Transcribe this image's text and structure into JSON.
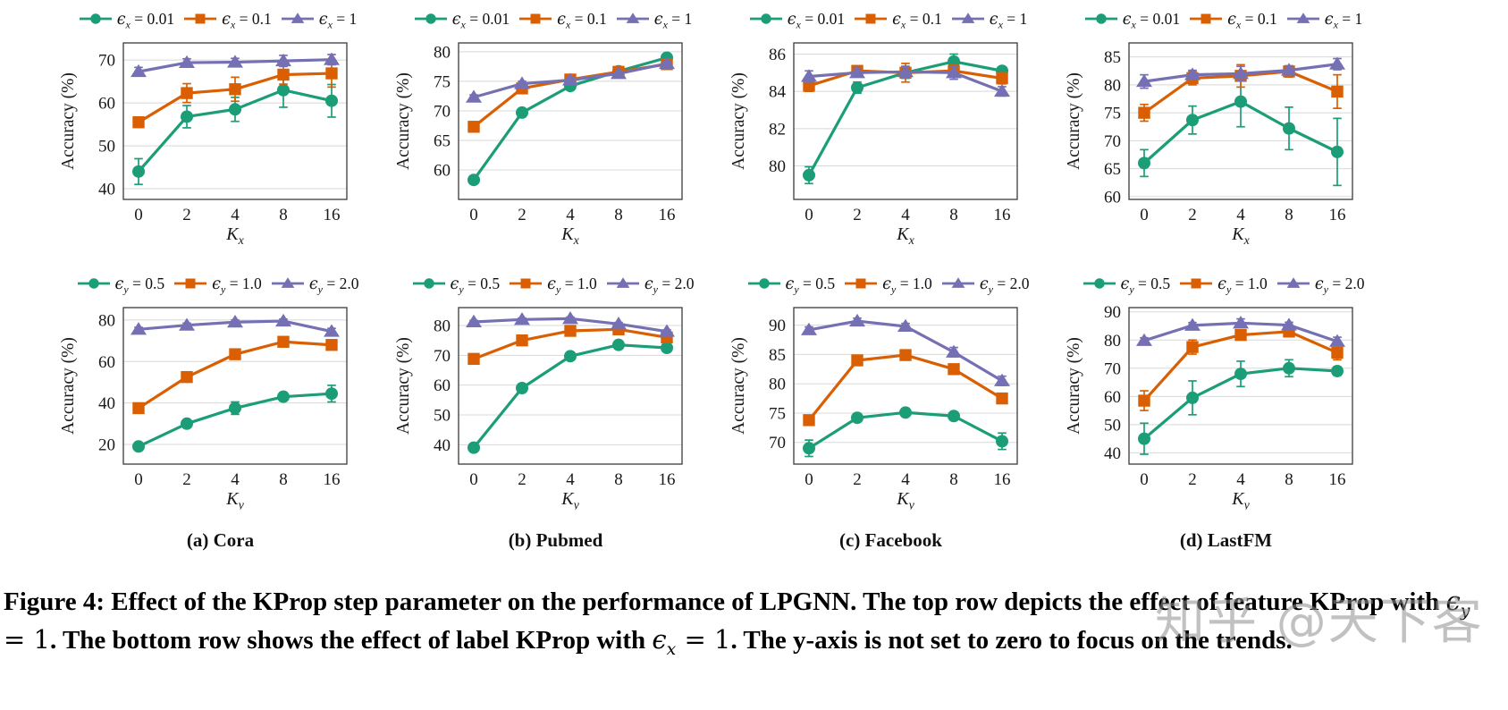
{
  "figure_caption": {
    "part1": "Figure 4: Effect of the KProp step parameter on the performance of LPGNN. The top row depicts the effect of feature KProp with ",
    "math1_base": "ϵ",
    "math1_sub": "y",
    "math1_rest": " = 1",
    "part2": ". The bottom row shows the effect of label KProp with ",
    "math2_base": "ϵ",
    "math2_sub": "x",
    "math2_rest": " = 1",
    "part3": ". The y-axis is not set to zero to focus on the trends."
  },
  "subcaptions": [
    "(a) Cora",
    "(b) Pubmed",
    "(c) Facebook",
    "(d) LastFM"
  ],
  "watermark": {
    "text": "知乎 @天下客"
  },
  "colors": {
    "series": {
      "green": "#1b9e77",
      "orange": "#d95f02",
      "purple": "#7570b3"
    },
    "grid": "#d8d8d8",
    "frame": "#3a3a3a",
    "text": "#1a1a1a"
  },
  "chart_data": [
    {
      "id": "cora-feature",
      "dataset": "Cora",
      "row": "top",
      "type": "line",
      "x_label": {
        "base": "K",
        "sub": "x"
      },
      "y_label": "Accuracy (%)",
      "categories": [
        0,
        2,
        4,
        8,
        16
      ],
      "yticks": [
        40,
        50,
        60,
        70
      ],
      "ylim": [
        37.5,
        74
      ],
      "grid": "horizontal",
      "legend_position": "top",
      "series": [
        {
          "name": {
            "base": "ϵ",
            "sub": "x",
            "rest": " = 0.01"
          },
          "color": "green",
          "marker": "circle",
          "values": [
            44,
            56.8,
            58.5,
            63,
            60.5
          ],
          "errors": [
            3,
            2.6,
            2.8,
            4,
            3.8
          ]
        },
        {
          "name": {
            "base": "ϵ",
            "sub": "x",
            "rest": " = 0.1"
          },
          "color": "orange",
          "marker": "square",
          "values": [
            55.5,
            62.3,
            63.2,
            66.6,
            66.9
          ],
          "errors": [
            1.2,
            2.2,
            2.8,
            2.2,
            3.2
          ]
        },
        {
          "name": {
            "base": "ϵ",
            "sub": "x",
            "rest": " = 1"
          },
          "color": "purple",
          "marker": "triangle",
          "values": [
            67.3,
            69.4,
            69.5,
            69.8,
            70.1
          ],
          "errors": [
            1.0,
            0.9,
            0.9,
            1.3,
            1.2
          ]
        }
      ]
    },
    {
      "id": "pubmed-feature",
      "dataset": "Pubmed",
      "row": "top",
      "type": "line",
      "x_label": {
        "base": "K",
        "sub": "x"
      },
      "y_label": "Accuracy (%)",
      "categories": [
        0,
        2,
        4,
        8,
        16
      ],
      "yticks": [
        60,
        65,
        70,
        75,
        80
      ],
      "ylim": [
        55,
        81.5
      ],
      "grid": "horizontal",
      "legend_position": "top",
      "series": [
        {
          "name": {
            "base": "ϵ",
            "sub": "x",
            "rest": " = 0.01"
          },
          "color": "green",
          "marker": "circle",
          "values": [
            58.3,
            69.7,
            74.2,
            76.7,
            79.0
          ],
          "errors": [
            0.5,
            0.4,
            0.4,
            0.4,
            0.4
          ]
        },
        {
          "name": {
            "base": "ϵ",
            "sub": "x",
            "rest": " = 0.1"
          },
          "color": "orange",
          "marker": "square",
          "values": [
            67.3,
            73.8,
            75.3,
            76.6,
            77.9
          ],
          "errors": [
            0.5,
            0.4,
            0.4,
            0.4,
            0.4
          ]
        },
        {
          "name": {
            "base": "ϵ",
            "sub": "x",
            "rest": " = 1"
          },
          "color": "purple",
          "marker": "triangle",
          "values": [
            72.3,
            74.6,
            75.2,
            76.3,
            78.0
          ],
          "errors": [
            0.4,
            0.4,
            0.4,
            0.4,
            0.4
          ]
        }
      ]
    },
    {
      "id": "facebook-feature",
      "dataset": "Facebook",
      "row": "top",
      "type": "line",
      "x_label": {
        "base": "K",
        "sub": "x"
      },
      "y_label": "Accuracy (%)",
      "categories": [
        0,
        2,
        4,
        8,
        16
      ],
      "yticks": [
        80,
        82,
        84,
        86
      ],
      "ylim": [
        78.2,
        86.6
      ],
      "grid": "horizontal",
      "legend_position": "top",
      "series": [
        {
          "name": {
            "base": "ϵ",
            "sub": "x",
            "rest": " = 0.01"
          },
          "color": "green",
          "marker": "circle",
          "values": [
            79.5,
            84.2,
            85.0,
            85.6,
            85.1
          ],
          "errors": [
            0.45,
            0.3,
            0.3,
            0.4,
            0.2
          ]
        },
        {
          "name": {
            "base": "ϵ",
            "sub": "x",
            "rest": " = 0.1"
          },
          "color": "orange",
          "marker": "square",
          "values": [
            84.3,
            85.1,
            85.0,
            85.1,
            84.7
          ],
          "errors": [
            0.3,
            0.25,
            0.5,
            0.3,
            0.3
          ]
        },
        {
          "name": {
            "base": "ϵ",
            "sub": "x",
            "rest": " = 1"
          },
          "color": "purple",
          "marker": "triangle",
          "values": [
            84.8,
            85.0,
            85.05,
            85.0,
            84.0
          ],
          "errors": [
            0.3,
            0.2,
            0.3,
            0.35,
            0.25
          ]
        }
      ]
    },
    {
      "id": "lastfm-feature",
      "dataset": "LastFM",
      "row": "top",
      "type": "line",
      "x_label": {
        "base": "K",
        "sub": "x"
      },
      "y_label": "Accuracy (%)",
      "categories": [
        0,
        2,
        4,
        8,
        16
      ],
      "yticks": [
        60,
        65,
        70,
        75,
        80,
        85
      ],
      "ylim": [
        59.5,
        87.5
      ],
      "grid": "horizontal",
      "legend_position": "top",
      "series": [
        {
          "name": {
            "base": "ϵ",
            "sub": "x",
            "rest": " = 0.01"
          },
          "color": "green",
          "marker": "circle",
          "values": [
            66.0,
            73.7,
            77.0,
            72.2,
            68.0
          ],
          "errors": [
            2.4,
            2.5,
            4.5,
            3.8,
            6.0
          ]
        },
        {
          "name": {
            "base": "ϵ",
            "sub": "x",
            "rest": " = 0.1"
          },
          "color": "orange",
          "marker": "square",
          "values": [
            75.0,
            81.2,
            81.6,
            82.4,
            78.8
          ],
          "errors": [
            1.5,
            1.2,
            2.0,
            1.0,
            3.0
          ]
        },
        {
          "name": {
            "base": "ϵ",
            "sub": "x",
            "rest": " = 1"
          },
          "color": "purple",
          "marker": "triangle",
          "values": [
            80.6,
            81.8,
            82.0,
            82.6,
            83.7
          ],
          "errors": [
            1.2,
            0.8,
            1.3,
            0.8,
            1.0
          ]
        }
      ]
    },
    {
      "id": "cora-label",
      "dataset": "Cora",
      "row": "bottom",
      "type": "line",
      "x_label": {
        "base": "K",
        "sub": "y"
      },
      "y_label": "Accuracy (%)",
      "categories": [
        0,
        2,
        4,
        8,
        16
      ],
      "yticks": [
        20,
        40,
        60,
        80
      ],
      "ylim": [
        10.5,
        86
      ],
      "grid": "horizontal",
      "legend_position": "top",
      "series": [
        {
          "name": {
            "base": "ϵ",
            "sub": "y",
            "rest": " = 0.5"
          },
          "color": "green",
          "marker": "circle",
          "values": [
            19,
            30,
            37.5,
            43,
            44.5
          ],
          "errors": [
            1.5,
            1.5,
            3,
            2,
            4
          ]
        },
        {
          "name": {
            "base": "ϵ",
            "sub": "y",
            "rest": " = 1.0"
          },
          "color": "orange",
          "marker": "square",
          "values": [
            37.5,
            52.5,
            63.5,
            69.5,
            68
          ],
          "errors": [
            2,
            1.5,
            1.5,
            1.5,
            2
          ]
        },
        {
          "name": {
            "base": "ϵ",
            "sub": "y",
            "rest": " = 2.0"
          },
          "color": "purple",
          "marker": "triangle",
          "values": [
            75.5,
            77.5,
            79,
            79.5,
            74.5
          ],
          "errors": [
            1,
            1,
            1,
            1,
            1.5
          ]
        }
      ]
    },
    {
      "id": "pubmed-label",
      "dataset": "Pubmed",
      "row": "bottom",
      "type": "line",
      "x_label": {
        "base": "K",
        "sub": "y"
      },
      "y_label": "Accuracy (%)",
      "categories": [
        0,
        2,
        4,
        8,
        16
      ],
      "yticks": [
        40,
        50,
        60,
        70,
        80
      ],
      "ylim": [
        33.5,
        86
      ],
      "grid": "horizontal",
      "legend_position": "top",
      "series": [
        {
          "name": {
            "base": "ϵ",
            "sub": "y",
            "rest": " = 0.5"
          },
          "color": "green",
          "marker": "circle",
          "values": [
            39,
            59,
            69.7,
            73.5,
            72.5
          ],
          "errors": [
            1,
            1,
            0.8,
            0.8,
            0.8
          ]
        },
        {
          "name": {
            "base": "ϵ",
            "sub": "y",
            "rest": " = 1.0"
          },
          "color": "orange",
          "marker": "square",
          "values": [
            68.8,
            75,
            78.2,
            78.7,
            76
          ],
          "errors": [
            0.8,
            0.8,
            0.8,
            0.8,
            0.8
          ]
        },
        {
          "name": {
            "base": "ϵ",
            "sub": "y",
            "rest": " = 2.0"
          },
          "color": "purple",
          "marker": "triangle",
          "values": [
            81.2,
            82,
            82.3,
            80.5,
            78
          ],
          "errors": [
            0.5,
            0.5,
            0.5,
            0.5,
            0.5
          ]
        }
      ]
    },
    {
      "id": "facebook-label",
      "dataset": "Facebook",
      "row": "bottom",
      "type": "line",
      "x_label": {
        "base": "K",
        "sub": "y"
      },
      "y_label": "Accuracy (%)",
      "categories": [
        0,
        2,
        4,
        8,
        16
      ],
      "yticks": [
        70,
        75,
        80,
        85,
        90
      ],
      "ylim": [
        66.3,
        93
      ],
      "grid": "horizontal",
      "legend_position": "top",
      "series": [
        {
          "name": {
            "base": "ϵ",
            "sub": "y",
            "rest": " = 0.5"
          },
          "color": "green",
          "marker": "circle",
          "values": [
            69,
            74.2,
            75.1,
            74.5,
            70.2
          ],
          "errors": [
            1.4,
            0.6,
            0.5,
            0.6,
            1.4
          ]
        },
        {
          "name": {
            "base": "ϵ",
            "sub": "y",
            "rest": " = 1.0"
          },
          "color": "orange",
          "marker": "square",
          "values": [
            73.8,
            84,
            84.9,
            82.5,
            77.5
          ],
          "errors": [
            0.8,
            0.8,
            0.8,
            0.8,
            0.8
          ]
        },
        {
          "name": {
            "base": "ϵ",
            "sub": "y",
            "rest": " = 2.0"
          },
          "color": "purple",
          "marker": "triangle",
          "values": [
            89.2,
            90.7,
            89.8,
            85.4,
            80.5
          ],
          "errors": [
            0.5,
            0.5,
            0.5,
            0.8,
            0.8
          ]
        }
      ]
    },
    {
      "id": "lastfm-label",
      "dataset": "LastFM",
      "row": "bottom",
      "type": "line",
      "x_label": {
        "base": "K",
        "sub": "y"
      },
      "y_label": "Accuracy (%)",
      "categories": [
        0,
        2,
        4,
        8,
        16
      ],
      "yticks": [
        40,
        50,
        60,
        70,
        80,
        90
      ],
      "ylim": [
        36,
        91.5
      ],
      "grid": "horizontal",
      "legend_position": "top",
      "series": [
        {
          "name": {
            "base": "ϵ",
            "sub": "y",
            "rest": " = 0.5"
          },
          "color": "green",
          "marker": "circle",
          "values": [
            45,
            59.5,
            68,
            70,
            69
          ],
          "errors": [
            5.5,
            6,
            4.5,
            3,
            1.5
          ]
        },
        {
          "name": {
            "base": "ϵ",
            "sub": "y",
            "rest": " = 1.0"
          },
          "color": "orange",
          "marker": "square",
          "values": [
            58.5,
            77.5,
            81.8,
            83,
            75.5
          ],
          "errors": [
            3.5,
            2.5,
            1.5,
            1.5,
            2.5
          ]
        },
        {
          "name": {
            "base": "ϵ",
            "sub": "y",
            "rest": " = 2.0"
          },
          "color": "purple",
          "marker": "triangle",
          "values": [
            79.8,
            85.2,
            86,
            85.3,
            79.5
          ],
          "errors": [
            1,
            1,
            1.5,
            1,
            1.5
          ]
        }
      ]
    }
  ]
}
